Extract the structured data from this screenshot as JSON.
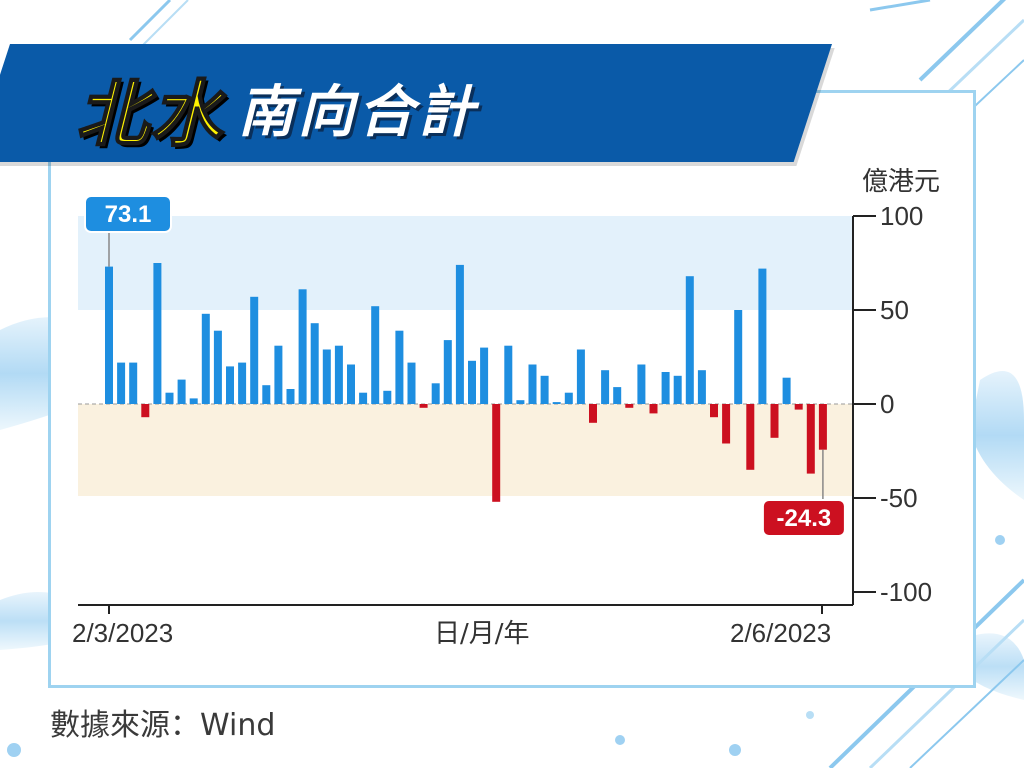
{
  "title": {
    "main": "北水",
    "sub": "南向合計"
  },
  "source": "數據來源：Wind",
  "colors": {
    "positive": "#1e8ee0",
    "negative": "#cc1020",
    "banner": "#0a5aa8",
    "title_main": "#fff200",
    "band_positive": "#e3f1fb",
    "band_negative": "#faf1df"
  },
  "chart_data": {
    "type": "bar",
    "unit": "億港元",
    "xlabel": "日/月/年",
    "x_start_label": "2/3/2023",
    "x_end_label": "2/6/2023",
    "ylim": [
      -100,
      100
    ],
    "yticks": [
      100,
      50,
      0,
      -50,
      -100
    ],
    "values": [
      73.1,
      22,
      22,
      -7,
      75,
      6,
      13,
      3,
      48,
      39,
      20,
      22,
      57,
      10,
      31,
      8,
      61,
      43,
      29,
      31,
      21,
      6,
      52,
      7,
      39,
      22,
      -2,
      11,
      34,
      74,
      23,
      30,
      -52,
      31,
      2,
      21,
      15,
      1,
      6,
      29,
      -10,
      18,
      9,
      -2,
      21,
      -5,
      17,
      15,
      68,
      18,
      -7,
      -21,
      50,
      -35,
      72,
      -18,
      14,
      -3,
      -37,
      -24.3
    ],
    "callouts": [
      {
        "index": 0,
        "label": "73.1"
      },
      {
        "index": 59,
        "label": "-24.3"
      }
    ]
  }
}
